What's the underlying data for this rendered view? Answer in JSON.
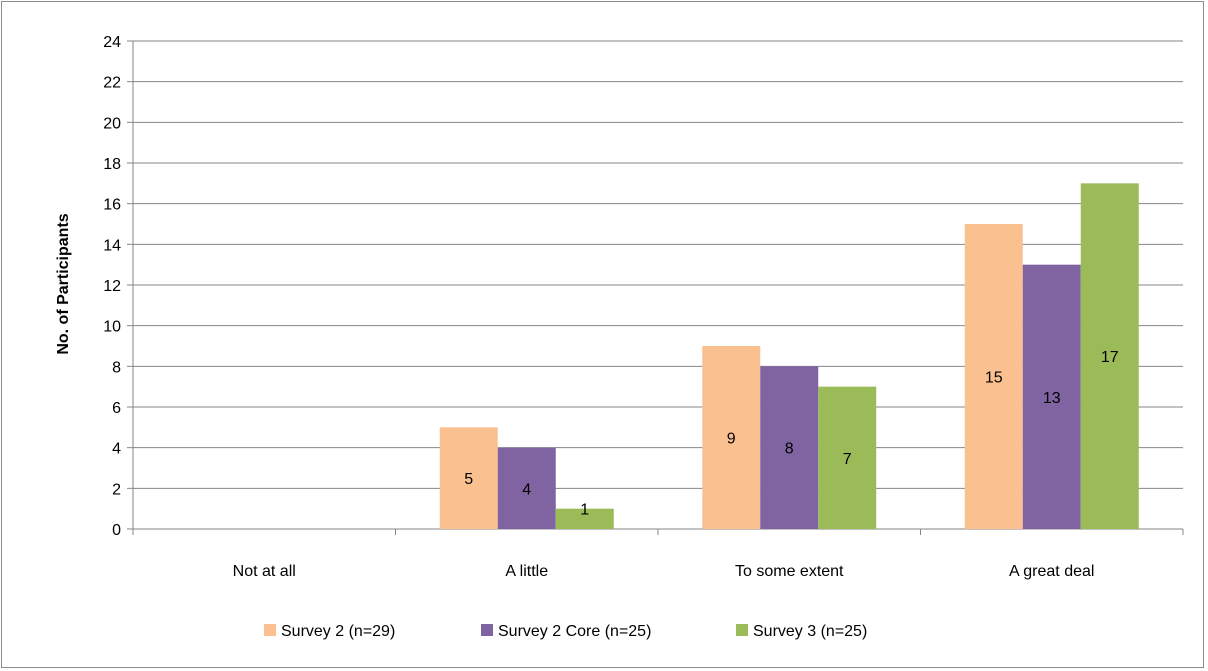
{
  "chart_data": {
    "type": "bar",
    "title": "",
    "xlabel": "",
    "ylabel": "No. of Participants",
    "ylim": [
      0,
      24
    ],
    "ytick_step": 2,
    "grid": true,
    "legend_position": "bottom",
    "categories": [
      "Not at all",
      "A little",
      "To some extent",
      "A great deal"
    ],
    "series": [
      {
        "name": "Survey 2 (n=29)",
        "color": "#fac090",
        "values": [
          0,
          5,
          9,
          15
        ]
      },
      {
        "name": "Survey 2 Core (n=25)",
        "color": "#8064a2",
        "values": [
          0,
          4,
          8,
          13
        ]
      },
      {
        "name": "Survey 3 (n=25)",
        "color": "#9bbb59",
        "values": [
          0,
          1,
          7,
          17
        ]
      }
    ]
  }
}
